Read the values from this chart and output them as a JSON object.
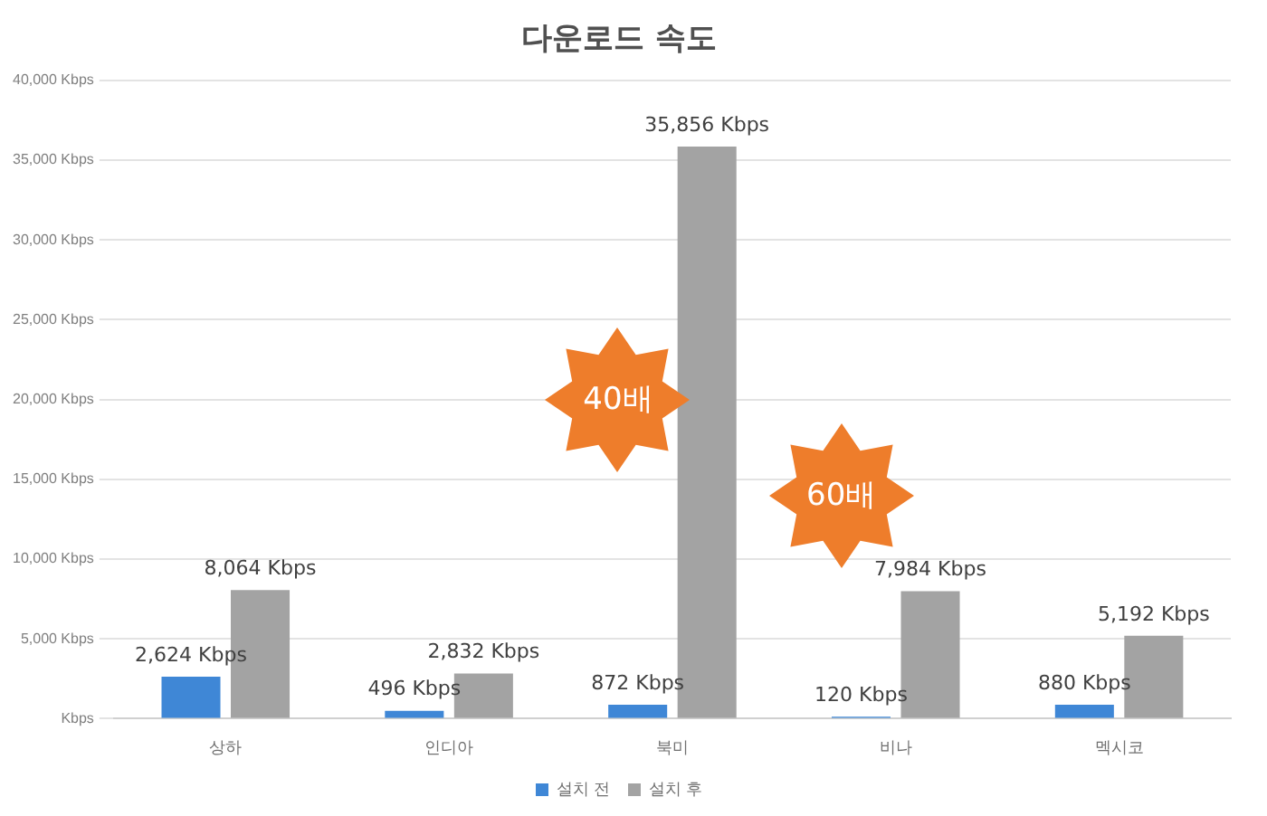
{
  "chart_data": {
    "type": "bar",
    "title": "다운로드 속도",
    "categories": [
      "상하",
      "인디아",
      "북미",
      "비나",
      "멕시코"
    ],
    "series": [
      {
        "name": "설치 전",
        "color": "#3f87d6",
        "values": [
          2624,
          496,
          872,
          120,
          880
        ],
        "value_labels": [
          "2,624 Kbps",
          "496 Kbps",
          "872 Kbps",
          "120 Kbps",
          "880 Kbps"
        ]
      },
      {
        "name": "설치 후",
        "color": "#a3a3a3",
        "values": [
          8064,
          2832,
          35856,
          7984,
          5192
        ],
        "value_labels": [
          "8,064 Kbps",
          "2,832 Kbps",
          "35,856 Kbps",
          "7,984 Kbps",
          "5,192 Kbps"
        ]
      }
    ],
    "ylim": [
      0,
      40000
    ],
    "yticks": [
      {
        "value": 0,
        "label": "Kbps"
      },
      {
        "value": 5000,
        "label": "5,000 Kbps"
      },
      {
        "value": 10000,
        "label": "10,000 Kbps"
      },
      {
        "value": 15000,
        "label": "15,000 Kbps"
      },
      {
        "value": 20000,
        "label": "20,000 Kbps"
      },
      {
        "value": 25000,
        "label": "25,000 Kbps"
      },
      {
        "value": 30000,
        "label": "30,000 Kbps"
      },
      {
        "value": 35000,
        "label": "35,000 Kbps"
      },
      {
        "value": 40000,
        "label": "40,000 Kbps"
      }
    ],
    "grid": "y",
    "legend": "bottom",
    "annotations": [
      "40배",
      "60배"
    ]
  }
}
